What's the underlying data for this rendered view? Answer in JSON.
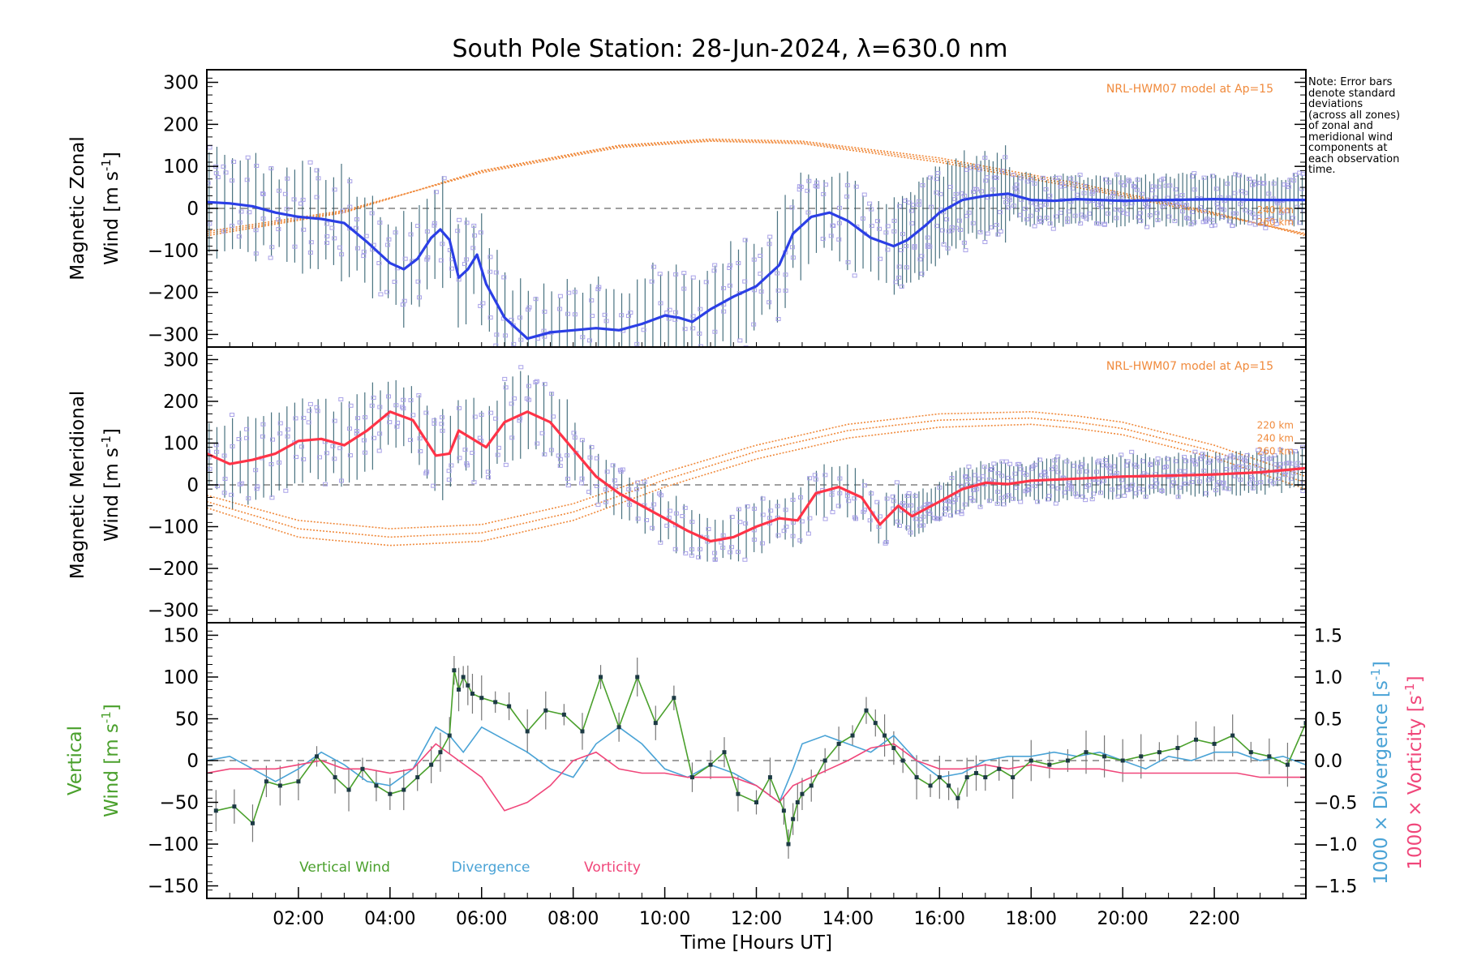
{
  "title": "South Pole Station: 28-Jun-2024, λ=630.0 nm",
  "note": [
    "Note: Error bars",
    "denote standard",
    "deviations",
    "(across all zones)",
    "of zonal and",
    "meridional wind",
    "components at",
    "each observation",
    "time."
  ],
  "colors": {
    "zonal": "#2b3fe6",
    "meridional": "#ff3347",
    "model": "#f08a3c",
    "vertical": "#4aa02c",
    "divergence": "#4aa3d6",
    "vorticity": "#f0467a",
    "scatter": "#a9a2e8",
    "errbar": "#2a5a6a",
    "zero": "#808080"
  },
  "chart_data": [
    {
      "type": "line",
      "panel": "zonal",
      "ylabel_line1": "Magnetic Zonal",
      "ylabel_line2": "Wind [m s",
      "ylabel_sup": "-1",
      "ylabel_end": "]",
      "xlim": [
        0,
        24
      ],
      "ylim": [
        -330,
        330
      ],
      "yticks": [
        -300,
        -200,
        -100,
        0,
        100,
        200,
        300
      ],
      "model_label": "NRL-HWM07 model at Ap=15",
      "model_alt_labels": [
        "240 km",
        "260 km"
      ],
      "model_series": [
        {
          "name": "220 km",
          "x": [
            0,
            3,
            6,
            9,
            11,
            13,
            16,
            19,
            22,
            24
          ],
          "values": [
            -65,
            -10,
            90,
            150,
            165,
            160,
            120,
            60,
            -10,
            -65
          ]
        },
        {
          "name": "240 km",
          "x": [
            0,
            3,
            6,
            9,
            11,
            13,
            16,
            19,
            22,
            24
          ],
          "values": [
            -60,
            -8,
            88,
            148,
            162,
            157,
            115,
            55,
            -12,
            -62
          ]
        },
        {
          "name": "260 km",
          "x": [
            0,
            3,
            6,
            9,
            11,
            13,
            16,
            19,
            22,
            24
          ],
          "values": [
            -55,
            -5,
            85,
            145,
            160,
            154,
            110,
            50,
            -15,
            -60
          ]
        }
      ],
      "series": [
        {
          "name": "Zonal wind",
          "x": [
            0,
            0.5,
            1,
            1.5,
            2,
            2.5,
            3,
            3.5,
            4,
            4.3,
            4.6,
            4.9,
            5.1,
            5.3,
            5.5,
            5.7,
            5.9,
            6.1,
            6.5,
            7,
            7.5,
            8,
            8.5,
            9,
            9.5,
            10,
            10.3,
            10.6,
            11,
            11.5,
            12,
            12.5,
            12.8,
            13.2,
            13.6,
            14,
            14.5,
            15,
            15.3,
            15.7,
            16,
            16.5,
            17,
            17.5,
            18,
            18.5,
            19,
            20,
            21,
            22,
            23,
            24
          ],
          "values": [
            15,
            12,
            5,
            -10,
            -20,
            -25,
            -35,
            -80,
            -130,
            -145,
            -120,
            -70,
            -50,
            -75,
            -165,
            -145,
            -110,
            -180,
            -260,
            -310,
            -295,
            -290,
            -285,
            -290,
            -275,
            -255,
            -260,
            -270,
            -240,
            -210,
            -185,
            -135,
            -60,
            -20,
            -10,
            -30,
            -70,
            -90,
            -75,
            -40,
            -10,
            20,
            30,
            35,
            20,
            18,
            22,
            18,
            20,
            22,
            20,
            20
          ]
        }
      ]
    },
    {
      "type": "line",
      "panel": "meridional",
      "ylabel_line1": "Magnetic Meridional",
      "ylabel_line2": "Wind [m s",
      "ylabel_sup": "-1",
      "ylabel_end": "]",
      "xlim": [
        0,
        24
      ],
      "ylim": [
        -330,
        330
      ],
      "yticks": [
        -300,
        -200,
        -100,
        0,
        100,
        200,
        300
      ],
      "model_label": "NRL-HWM07 model at Ap=15",
      "model_alt_labels": [
        "220 km",
        "240 km",
        "260 km"
      ],
      "model_series": [
        {
          "name": "220 km",
          "x": [
            0,
            2,
            4,
            6,
            8,
            10,
            12,
            14,
            16,
            18,
            19,
            20,
            22,
            24
          ],
          "values": [
            -25,
            -85,
            -105,
            -95,
            -45,
            30,
            95,
            145,
            170,
            175,
            165,
            150,
            95,
            20
          ]
        },
        {
          "name": "240 km",
          "x": [
            0,
            2,
            4,
            6,
            8,
            10,
            12,
            14,
            16,
            18,
            19,
            20,
            22,
            24
          ],
          "values": [
            -40,
            -105,
            -125,
            -115,
            -65,
            12,
            80,
            130,
            155,
            160,
            150,
            135,
            80,
            5
          ]
        },
        {
          "name": "260 km",
          "x": [
            0,
            2,
            4,
            6,
            8,
            10,
            12,
            14,
            16,
            18,
            19,
            20,
            22,
            24
          ],
          "values": [
            -55,
            -125,
            -145,
            -135,
            -85,
            -5,
            62,
            112,
            138,
            145,
            135,
            120,
            65,
            -10
          ]
        }
      ],
      "series": [
        {
          "name": "Meridional wind",
          "x": [
            0,
            0.5,
            1,
            1.5,
            2,
            2.5,
            3,
            3.5,
            4,
            4.5,
            5,
            5.3,
            5.5,
            5.8,
            6.1,
            6.5,
            7,
            7.5,
            8,
            8.5,
            9,
            9.5,
            10,
            10.5,
            11,
            11.5,
            12,
            12.5,
            12.9,
            13.3,
            13.8,
            14.3,
            14.7,
            15.1,
            15.4,
            16,
            16.5,
            17,
            17.5,
            18,
            19,
            20,
            21,
            22,
            23,
            24
          ],
          "values": [
            75,
            50,
            60,
            75,
            105,
            110,
            95,
            130,
            175,
            155,
            70,
            75,
            130,
            110,
            90,
            150,
            175,
            150,
            85,
            20,
            -20,
            -50,
            -80,
            -110,
            -135,
            -125,
            -100,
            -80,
            -85,
            -20,
            -5,
            -30,
            -95,
            -50,
            -75,
            -40,
            -10,
            5,
            2,
            10,
            15,
            20,
            22,
            25,
            30,
            40
          ]
        }
      ]
    },
    {
      "type": "line",
      "panel": "vertical",
      "ylabel_line1": "Vertical",
      "ylabel_line2": "Wind [m s",
      "ylabel_sup": "-1",
      "ylabel_end": "]",
      "y2label": "1000 × Divergence [s",
      "y3label": "1000 × Vorticity [s",
      "y2label_sup": "-1",
      "y2label_end": "]",
      "xlim": [
        0,
        24
      ],
      "ylim": [
        -165,
        165
      ],
      "yticks": [
        -150,
        -100,
        -50,
        0,
        50,
        100,
        150
      ],
      "y2lim": [
        -1.65,
        1.65
      ],
      "y2ticks": [
        -1.5,
        -1.0,
        -0.5,
        0.0,
        0.5,
        1.0,
        1.5
      ],
      "y2ticklabels": [
        "−1.5",
        "−1.0",
        "−0.5",
        "0.0",
        "0.5",
        "1.0",
        "1.5"
      ],
      "xticks": [
        2,
        4,
        6,
        8,
        10,
        12,
        14,
        16,
        18,
        20,
        22
      ],
      "xticklabels": [
        "02:00",
        "04:00",
        "06:00",
        "08:00",
        "10:00",
        "12:00",
        "14:00",
        "16:00",
        "18:00",
        "20:00",
        "22:00"
      ],
      "xlabel": "Time [Hours UT]",
      "legend": [
        "Vertical Wind",
        "Divergence",
        "Vorticity"
      ],
      "series": [
        {
          "name": "Vertical Wind",
          "x": [
            0.2,
            0.6,
            1.0,
            1.3,
            1.6,
            2.0,
            2.4,
            2.8,
            3.1,
            3.4,
            3.7,
            4.0,
            4.3,
            4.6,
            4.9,
            5.1,
            5.3,
            5.4,
            5.5,
            5.6,
            5.7,
            5.8,
            6.0,
            6.3,
            6.6,
            7.0,
            7.4,
            7.8,
            8.2,
            8.6,
            9.0,
            9.4,
            9.8,
            10.2,
            10.6,
            11.0,
            11.3,
            11.6,
            12.0,
            12.3,
            12.6,
            12.7,
            12.8,
            12.9,
            13.0,
            13.2,
            13.5,
            13.8,
            14.1,
            14.4,
            14.6,
            14.8,
            15.0,
            15.2,
            15.5,
            15.8,
            16.0,
            16.2,
            16.4,
            16.6,
            16.8,
            17.0,
            17.3,
            17.6,
            18.0,
            18.4,
            18.8,
            19.2,
            19.6,
            20.0,
            20.4,
            20.8,
            21.2,
            21.6,
            22.0,
            22.4,
            22.8,
            23.2,
            23.6,
            24.0
          ],
          "values": [
            -60,
            -55,
            -75,
            -25,
            -30,
            -25,
            5,
            -20,
            -35,
            -10,
            -30,
            -40,
            -35,
            -20,
            -5,
            10,
            30,
            108,
            85,
            100,
            90,
            80,
            75,
            70,
            65,
            35,
            60,
            55,
            35,
            100,
            40,
            100,
            45,
            75,
            -20,
            -5,
            10,
            -40,
            -50,
            -20,
            -60,
            -100,
            -70,
            -50,
            -40,
            -30,
            0,
            20,
            30,
            60,
            45,
            30,
            15,
            0,
            -20,
            -30,
            -20,
            -30,
            -45,
            -20,
            -15,
            -20,
            -10,
            -20,
            0,
            -5,
            0,
            10,
            5,
            0,
            5,
            10,
            15,
            25,
            20,
            30,
            10,
            5,
            -5,
            45
          ]
        },
        {
          "name": "Divergence",
          "x": [
            0,
            0.5,
            1,
            1.5,
            2,
            2.5,
            3,
            3.5,
            4,
            4.5,
            5,
            5.3,
            5.6,
            6,
            6.5,
            7,
            7.5,
            8,
            8.5,
            9,
            9.5,
            10,
            10.5,
            11,
            11.5,
            12,
            12.5,
            12.8,
            13,
            13.5,
            14,
            14.5,
            15,
            15.5,
            16,
            16.5,
            17,
            17.5,
            18,
            18.5,
            19,
            19.5,
            20,
            20.5,
            21,
            21.5,
            22,
            22.5,
            23,
            23.5,
            24
          ],
          "values": [
            0.0,
            0.05,
            -0.1,
            -0.25,
            -0.1,
            0.1,
            -0.05,
            -0.25,
            -0.3,
            -0.1,
            0.4,
            0.3,
            0.1,
            0.4,
            0.25,
            0.1,
            -0.1,
            -0.2,
            0.2,
            0.4,
            0.2,
            -0.1,
            -0.2,
            -0.05,
            -0.15,
            -0.3,
            -0.5,
            -0.1,
            0.2,
            0.3,
            0.2,
            0.1,
            0.3,
            0.0,
            -0.2,
            -0.15,
            0.0,
            0.05,
            0.05,
            0.1,
            0.05,
            0.1,
            0.0,
            -0.1,
            0.05,
            0.0,
            0.1,
            0.1,
            0.0,
            0.05,
            -0.05
          ]
        },
        {
          "name": "Vorticity",
          "x": [
            0,
            0.5,
            1,
            1.5,
            2,
            2.5,
            3,
            3.5,
            4,
            4.5,
            5,
            5.5,
            6,
            6.5,
            7,
            7.5,
            8,
            8.5,
            9,
            9.5,
            10,
            10.5,
            11,
            11.5,
            12,
            12.5,
            12.8,
            13.2,
            13.6,
            14,
            14.5,
            15,
            15.5,
            16,
            16.5,
            17,
            17.5,
            18,
            18.5,
            19,
            19.5,
            20,
            20.5,
            21,
            21.5,
            22,
            22.5,
            23,
            23.5,
            24
          ],
          "values": [
            -0.15,
            -0.1,
            -0.1,
            -0.1,
            -0.05,
            0.0,
            -0.1,
            -0.1,
            -0.15,
            -0.1,
            0.2,
            0.0,
            -0.2,
            -0.6,
            -0.5,
            -0.3,
            0.0,
            0.1,
            -0.1,
            -0.15,
            -0.15,
            -0.2,
            -0.2,
            -0.2,
            -0.3,
            -0.5,
            -0.3,
            -0.2,
            -0.1,
            0.0,
            0.15,
            0.2,
            0.0,
            -0.1,
            -0.1,
            -0.05,
            -0.1,
            -0.05,
            -0.1,
            -0.1,
            -0.1,
            -0.15,
            -0.15,
            -0.15,
            -0.15,
            -0.15,
            -0.15,
            -0.2,
            -0.2,
            -0.2
          ]
        }
      ]
    }
  ]
}
